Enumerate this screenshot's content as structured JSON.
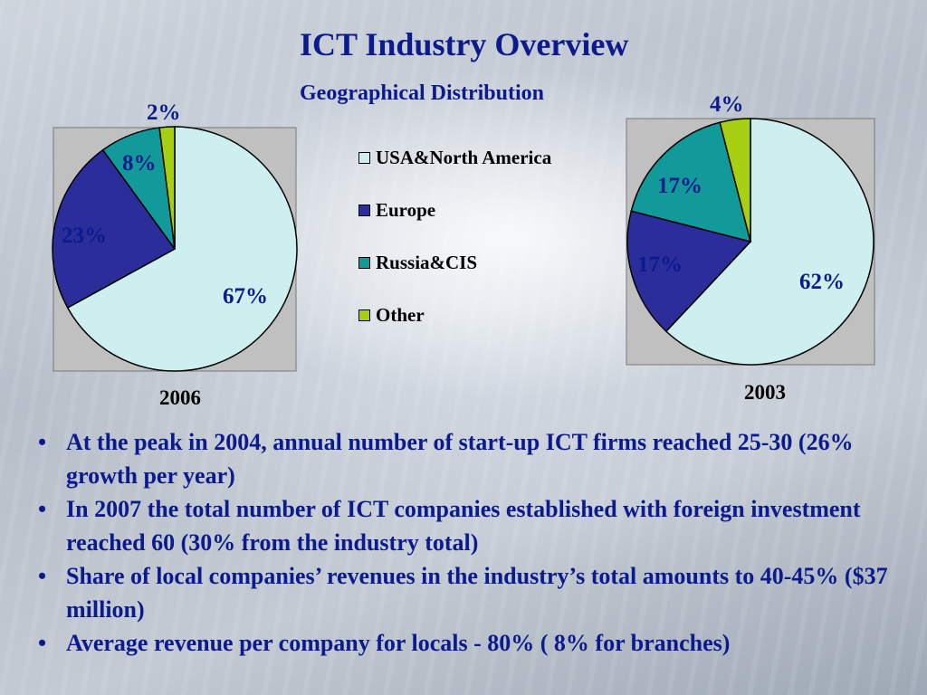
{
  "slide": {
    "title": "ICT Industry Overview",
    "subtitle": "Geographical Distribution",
    "bullets": [
      "At the peak in 2004, annual number of start-up ICT firms reached 25-30 (26% growth per year)",
      "In 2007 the total number of ICT companies established with foreign investment reached 60 (30% from the industry total)",
      "Share of local companies’ revenues in the industry’s total amounts to 40-45% ($37 million)",
      "Average revenue per company for locals - 80% ( 8% for branches)"
    ]
  },
  "legend": {
    "items": [
      {
        "label": "USA&North America",
        "color": "#cdeff0"
      },
      {
        "label": "Europe",
        "color": "#2b2d9a"
      },
      {
        "label": "Russia&CIS",
        "color": "#12999a"
      },
      {
        "label": "Other",
        "color": "#a8d012"
      }
    ]
  },
  "chart_data": [
    {
      "type": "pie",
      "title": "2006",
      "categories": [
        "USA&North America",
        "Europe",
        "Russia&CIS",
        "Other"
      ],
      "values": [
        67,
        23,
        8,
        2
      ],
      "data_labels": [
        "67%",
        "23%",
        "8%",
        "2%"
      ],
      "colors": [
        "#cdeff0",
        "#2b2d9a",
        "#12999a",
        "#a8d012"
      ],
      "plot_background": "#c0c0c0"
    },
    {
      "type": "pie",
      "title": "2003",
      "categories": [
        "USA&North America",
        "Europe",
        "Russia&CIS",
        "Other"
      ],
      "values": [
        62,
        17,
        17,
        4
      ],
      "data_labels": [
        "62%",
        "17%",
        "17%",
        "4%"
      ],
      "colors": [
        "#cdeff0",
        "#2b2d9a",
        "#12999a",
        "#a8d012"
      ],
      "plot_background": "#c0c0c0"
    }
  ]
}
